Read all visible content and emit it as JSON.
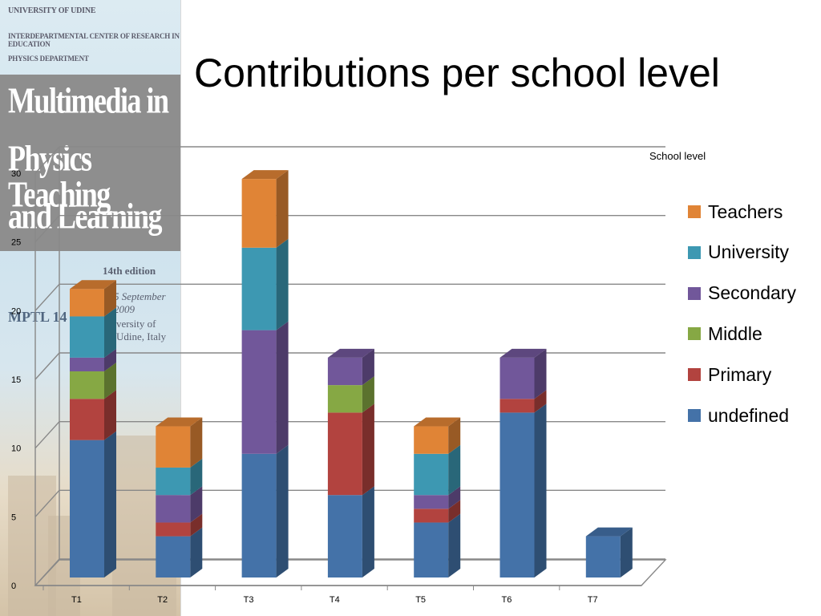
{
  "banner": {
    "org_lines": [
      "UNIVERSITY OF UDINE",
      "INTERDEPARTMENTAL CENTER OF RESEARCH IN EDUCATION",
      "PHYSICS DEPARTMENT"
    ],
    "conference_lines": [
      "Multimedia in",
      "Physics Teaching",
      "and Learning"
    ],
    "edition": "14th edition",
    "dates": "5 September 2009",
    "venue": "versity of Udine, Italy",
    "logo_text": "MPTL 14"
  },
  "slide_title": "Contributions per school level",
  "chart_data": {
    "type": "bar",
    "stacked": true,
    "three_d": true,
    "categories": [
      "T1",
      "T2",
      "T3",
      "T4",
      "T5",
      "T6",
      "T7"
    ],
    "series": [
      {
        "name": "undefined",
        "color": "#4472a8",
        "values": [
          10,
          3,
          9,
          6,
          4,
          12,
          3
        ]
      },
      {
        "name": "Primary",
        "color": "#b2433f",
        "values": [
          3,
          1,
          0,
          6,
          1,
          1,
          0
        ]
      },
      {
        "name": "Middle",
        "color": "#86a844",
        "values": [
          2,
          0,
          0,
          2,
          0,
          0,
          0
        ]
      },
      {
        "name": "Secondary",
        "color": "#71579a",
        "values": [
          1,
          2,
          9,
          2,
          1,
          3,
          0
        ]
      },
      {
        "name": "University",
        "color": "#3d98b2",
        "values": [
          3,
          2,
          6,
          0,
          3,
          0,
          0
        ]
      },
      {
        "name": "Teachers",
        "color": "#e08436",
        "values": [
          2,
          3,
          5,
          0,
          2,
          0,
          0
        ]
      }
    ],
    "y_ticks": [
      "0",
      "5",
      "10",
      "15",
      "20",
      "25",
      "30"
    ],
    "ylim": [
      0,
      30
    ],
    "legend_title": "School level",
    "legend_order": [
      "Teachers",
      "University",
      "Secondary",
      "Middle",
      "Primary",
      "undefined"
    ],
    "legend_position": "right",
    "grid": true
  }
}
